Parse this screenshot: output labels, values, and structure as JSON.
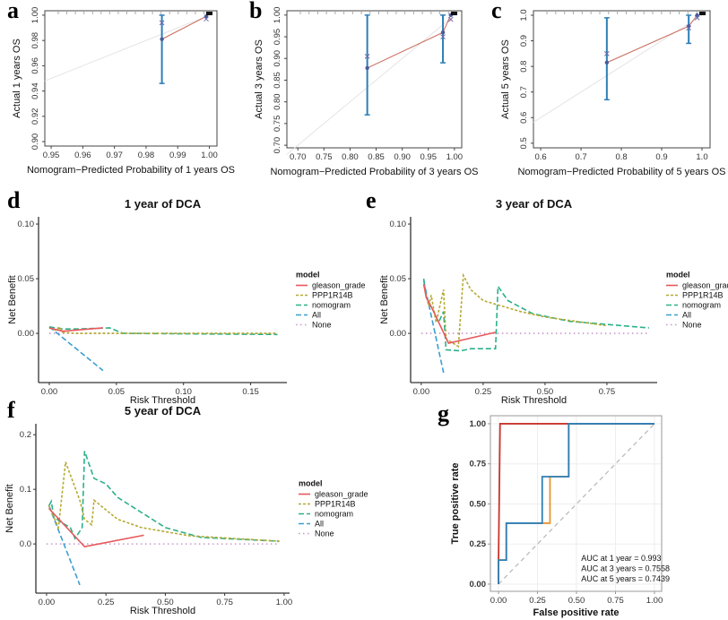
{
  "panel_labels": [
    "a",
    "b",
    "c",
    "d",
    "e",
    "f",
    "g"
  ],
  "colors": {
    "gleason_grade": "#e8575a",
    "PPP1R14B": "#b5a930",
    "nomogram": "#2bb08a",
    "All": "#3a9fd0",
    "None": "#c796c9",
    "calib_line": "#c86a5a",
    "error_bar": "#2e7fb8",
    "roc_1": "#c8362c",
    "roc_3": "#2e7fb8",
    "roc_5": "#e8962e"
  },
  "chart_data": [
    {
      "id": "a",
      "type": "scatter",
      "xlabel": "Nomogram−Predicted Probability of 1 years OS",
      "ylabel": "Actual 1 years OS",
      "xlim": [
        0.948,
        1.0024
      ],
      "ylim": [
        0.8965,
        1.0035
      ],
      "xticks": [
        "0.95",
        "0.96",
        "0.97",
        "0.98",
        "0.99",
        "1.00"
      ],
      "yticks": [
        "0.90",
        "0.92",
        "0.94",
        "0.96",
        "0.98",
        "1.00"
      ],
      "points": [
        {
          "x": 0.985,
          "y": 0.981,
          "lo": 0.946,
          "hi": 1.0,
          "corrected": 0.994
        },
        {
          "x": 0.999,
          "y": 0.999,
          "corrected": 0.997
        }
      ]
    },
    {
      "id": "b",
      "type": "scatter",
      "xlabel": "Nomogram−Predicted Probability of 3 years OS",
      "ylabel": "Actual 3 years OS",
      "xlim": [
        0.679,
        1.014
      ],
      "ylim": [
        0.694,
        1.01
      ],
      "xticks": [
        "0.70",
        "0.75",
        "0.80",
        "0.85",
        "0.90",
        "0.95",
        "1.00"
      ],
      "yticks": [
        "0.70",
        "0.75",
        "0.80",
        "0.85",
        "0.90",
        "0.95",
        "1.00"
      ],
      "points": [
        {
          "x": 0.833,
          "y": 0.878,
          "lo": 0.77,
          "hi": 1.0,
          "corrected": 0.905
        },
        {
          "x": 0.978,
          "y": 0.96,
          "lo": 0.89,
          "hi": 1.0,
          "corrected": 0.95
        },
        {
          "x": 0.993,
          "y": 1.0,
          "corrected": 0.99
        }
      ]
    },
    {
      "id": "c",
      "type": "scatter",
      "xlabel": "Nomogram−Predicted Probability of 5 years OS",
      "ylabel": "Actual 5 years OS",
      "xlim": [
        0.582,
        1.02
      ],
      "ylim": [
        0.482,
        1.0175
      ],
      "xticks": [
        "0.6",
        "0.7",
        "0.8",
        "0.9",
        "1.0"
      ],
      "yticks": [
        "0.5",
        "0.6",
        "0.7",
        "0.8",
        "0.9",
        "1.0"
      ],
      "points": [
        {
          "x": 0.764,
          "y": 0.815,
          "lo": 0.67,
          "hi": 0.99,
          "corrected": 0.85
        },
        {
          "x": 0.967,
          "y": 0.957,
          "lo": 0.89,
          "hi": 1.0,
          "corrected": 0.95
        },
        {
          "x": 0.988,
          "y": 1.0,
          "corrected": 0.99
        }
      ]
    },
    {
      "id": "d",
      "type": "line",
      "title": "1 year of DCA",
      "xlabel": "Risk Threshold",
      "ylabel": "Net Benefit",
      "legend_title": "model",
      "legend": "right",
      "xlim": [
        -0.008,
        0.177
      ],
      "ylim": [
        -0.045,
        0.1066
      ],
      "xticks": [
        "0.00",
        "0.05",
        "0.10",
        "0.15"
      ],
      "yticks": [
        "0.00",
        "0.05",
        "0.10"
      ],
      "series": [
        {
          "name": "gleason_grade",
          "values": [
            [
              0,
              0.005
            ],
            [
              0.01,
              0.002
            ],
            [
              0.02,
              0.003
            ],
            [
              0.03,
              0.004
            ],
            [
              0.04,
              0.005
            ]
          ]
        },
        {
          "name": "PPP1R14B",
          "values": [
            [
              0,
              0.005
            ],
            [
              0.005,
              0.003
            ],
            [
              0.008,
              0.006
            ],
            [
              0.01,
              0.001
            ],
            [
              0.02,
              0
            ],
            [
              0.17,
              0
            ]
          ]
        },
        {
          "name": "nomogram",
          "values": [
            [
              0,
              0.006
            ],
            [
              0.01,
              0.004
            ],
            [
              0.02,
              0.004
            ],
            [
              0.045,
              0.005
            ],
            [
              0.055,
              0
            ],
            [
              0.17,
              -0.001
            ]
          ]
        },
        {
          "name": "All",
          "values": [
            [
              0,
              0.006
            ],
            [
              0.04,
              -0.034
            ]
          ]
        },
        {
          "name": "None",
          "values": [
            [
              0,
              0
            ],
            [
              0.17,
              0
            ]
          ]
        }
      ]
    },
    {
      "id": "e",
      "type": "line",
      "title": "3 year of DCA",
      "xlabel": "Risk Threshold",
      "ylabel": "Net Benefit",
      "legend_title": "model",
      "legend": "right",
      "xlim": [
        -0.043,
        0.953
      ],
      "ylim": [
        -0.045,
        0.1066
      ],
      "xticks": [
        "0.00",
        "0.25",
        "0.50",
        "0.75"
      ],
      "yticks": [
        "0.00",
        "0.05",
        "0.10"
      ],
      "series": [
        {
          "name": "gleason_grade",
          "values": [
            [
              0.01,
              0.045
            ],
            [
              0.02,
              0.033
            ],
            [
              0.05,
              0.02
            ],
            [
              0.11,
              -0.009
            ],
            [
              0.3,
              0.001
            ]
          ]
        },
        {
          "name": "PPP1R14B",
          "values": [
            [
              0.01,
              0.045
            ],
            [
              0.03,
              0.025
            ],
            [
              0.04,
              0.035
            ],
            [
              0.06,
              0.01
            ],
            [
              0.09,
              0.04
            ],
            [
              0.1,
              -0.005
            ],
            [
              0.15,
              -0.012
            ],
            [
              0.17,
              0.053
            ],
            [
              0.2,
              0.04
            ],
            [
              0.25,
              0.03
            ],
            [
              0.4,
              0.02
            ],
            [
              0.5,
              0.015
            ],
            [
              0.75,
              0.007
            ]
          ]
        },
        {
          "name": "nomogram",
          "values": [
            [
              0.01,
              0.05
            ],
            [
              0.02,
              0.033
            ],
            [
              0.05,
              0.02
            ],
            [
              0.07,
              0.01
            ],
            [
              0.09,
              0.02
            ],
            [
              0.1,
              -0.015
            ],
            [
              0.16,
              -0.016
            ],
            [
              0.2,
              -0.014
            ],
            [
              0.3,
              -0.014
            ],
            [
              0.31,
              0.043
            ],
            [
              0.35,
              0.03
            ],
            [
              0.45,
              0.018
            ],
            [
              0.6,
              0.011
            ],
            [
              0.92,
              0.005
            ]
          ]
        },
        {
          "name": "All",
          "values": [
            [
              0.01,
              0.048
            ],
            [
              0.09,
              -0.036
            ]
          ]
        },
        {
          "name": "None",
          "values": [
            [
              0,
              0
            ],
            [
              0.92,
              0
            ]
          ]
        }
      ]
    },
    {
      "id": "f",
      "type": "line",
      "title": "5 year of DCA",
      "xlabel": "Risk Threshold",
      "ylabel": "Net Benefit",
      "legend_title": "model",
      "legend": "right",
      "xlim": [
        -0.045,
        1.023
      ],
      "ylim": [
        -0.09,
        0.22
      ],
      "xticks": [
        "0.00",
        "0.25",
        "0.50",
        "0.75",
        "1.00"
      ],
      "yticks": [
        "0.0",
        "0.1",
        "0.2"
      ],
      "series": [
        {
          "name": "gleason_grade",
          "values": [
            [
              0.01,
              0.065
            ],
            [
              0.16,
              -0.005
            ],
            [
              0.41,
              0.016
            ]
          ]
        },
        {
          "name": "PPP1R14B",
          "values": [
            [
              0.01,
              0.07
            ],
            [
              0.05,
              0.03
            ],
            [
              0.08,
              0.15
            ],
            [
              0.14,
              0.08
            ],
            [
              0.16,
              0.045
            ],
            [
              0.19,
              0.035
            ],
            [
              0.2,
              0.08
            ],
            [
              0.3,
              0.045
            ],
            [
              0.4,
              0.03
            ],
            [
              0.6,
              0.015
            ],
            [
              0.98,
              0.005
            ]
          ]
        },
        {
          "name": "nomogram",
          "values": [
            [
              0.01,
              0.07
            ],
            [
              0.02,
              0.078
            ],
            [
              0.03,
              0.05
            ],
            [
              0.06,
              0.04
            ],
            [
              0.1,
              0.03
            ],
            [
              0.12,
              0.01
            ],
            [
              0.15,
              0.03
            ],
            [
              0.16,
              0.17
            ],
            [
              0.2,
              0.12
            ],
            [
              0.25,
              0.11
            ],
            [
              0.3,
              0.085
            ],
            [
              0.5,
              0.03
            ],
            [
              0.65,
              0.012
            ],
            [
              0.98,
              0.005
            ]
          ]
        },
        {
          "name": "All",
          "values": [
            [
              0.01,
              0.07
            ],
            [
              0.14,
              -0.075
            ]
          ]
        },
        {
          "name": "None",
          "values": [
            [
              0,
              0
            ],
            [
              0.98,
              0
            ]
          ]
        }
      ]
    },
    {
      "id": "g",
      "type": "line",
      "xlabel": "False positive rate",
      "ylabel": "True positive rate",
      "xlim": [
        -0.052,
        1.046
      ],
      "ylim": [
        -0.045,
        1.05
      ],
      "grid": true,
      "xticks": [
        "0.00",
        "0.25",
        "0.50",
        "0.75",
        "1.00"
      ],
      "yticks": [
        "0.00",
        "0.25",
        "0.50",
        "0.75",
        "1.00"
      ],
      "series": [
        {
          "name": "AUC at 1 year = 0.993",
          "values": [
            [
              0,
              0
            ],
            [
              0,
              0.15
            ],
            [
              0.01,
              1
            ],
            [
              1,
              1
            ]
          ]
        },
        {
          "name": "AUC at 3 years = 0.7558",
          "values": [
            [
              0,
              0
            ],
            [
              0,
              0.15
            ],
            [
              0.05,
              0.15
            ],
            [
              0.05,
              0.38
            ],
            [
              0.28,
              0.38
            ],
            [
              0.28,
              0.67
            ],
            [
              0.45,
              0.67
            ],
            [
              0.45,
              1
            ],
            [
              1,
              1
            ]
          ]
        },
        {
          "name": "AUC at 5 years = 0.7439",
          "values": [
            [
              0,
              0
            ],
            [
              0,
              0.15
            ],
            [
              0.05,
              0.15
            ],
            [
              0.05,
              0.38
            ],
            [
              0.33,
              0.38
            ],
            [
              0.33,
              0.67
            ],
            [
              0.45,
              0.67
            ],
            [
              0.45,
              1
            ],
            [
              1,
              1
            ]
          ]
        }
      ]
    }
  ]
}
